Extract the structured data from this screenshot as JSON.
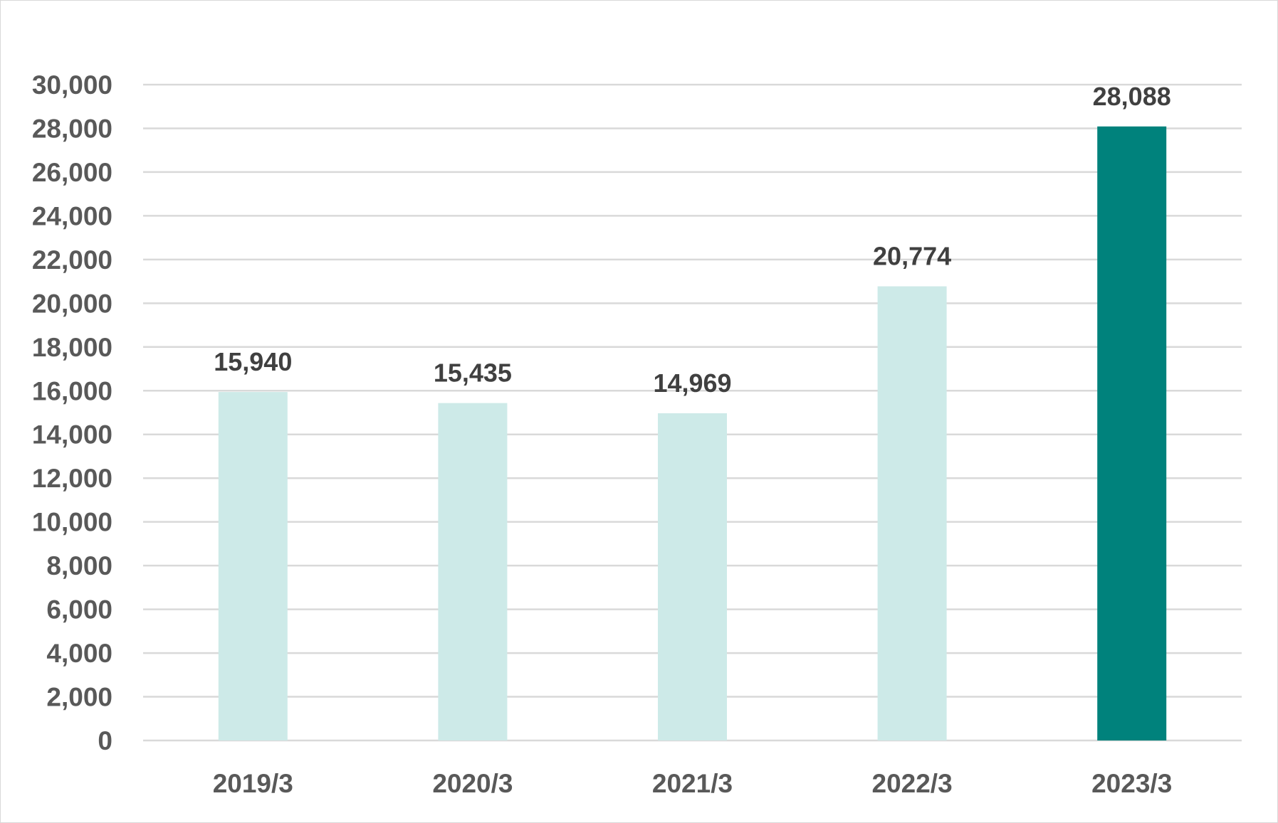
{
  "chart_data": {
    "type": "bar",
    "title": "",
    "xlabel": "",
    "ylabel": "",
    "categories": [
      "2019/3",
      "2020/3",
      "2021/3",
      "2022/3",
      "2023/3"
    ],
    "values": [
      15940,
      15435,
      14969,
      20774,
      28088
    ],
    "data_labels": [
      "15,940",
      "15,435",
      "14,969",
      "20,774",
      "28,088"
    ],
    "ylim": [
      0,
      30000
    ],
    "y_ticks": [
      0,
      2000,
      4000,
      6000,
      8000,
      10000,
      12000,
      14000,
      16000,
      18000,
      20000,
      22000,
      24000,
      26000,
      28000,
      30000
    ],
    "y_tick_labels": [
      "0",
      "2,000",
      "4,000",
      "6,000",
      "8,000",
      "10,000",
      "12,000",
      "14,000",
      "16,000",
      "18,000",
      "20,000",
      "22,000",
      "24,000",
      "26,000",
      "28,000",
      "30,000"
    ],
    "grid": true,
    "legend": "none",
    "colors": {
      "bar": "#cdeae8",
      "highlight_bar": "#00827c",
      "grid": "#d9d9d9",
      "tick_text": "#595959",
      "label_text": "#404040"
    },
    "highlight_category": "2023/3"
  }
}
